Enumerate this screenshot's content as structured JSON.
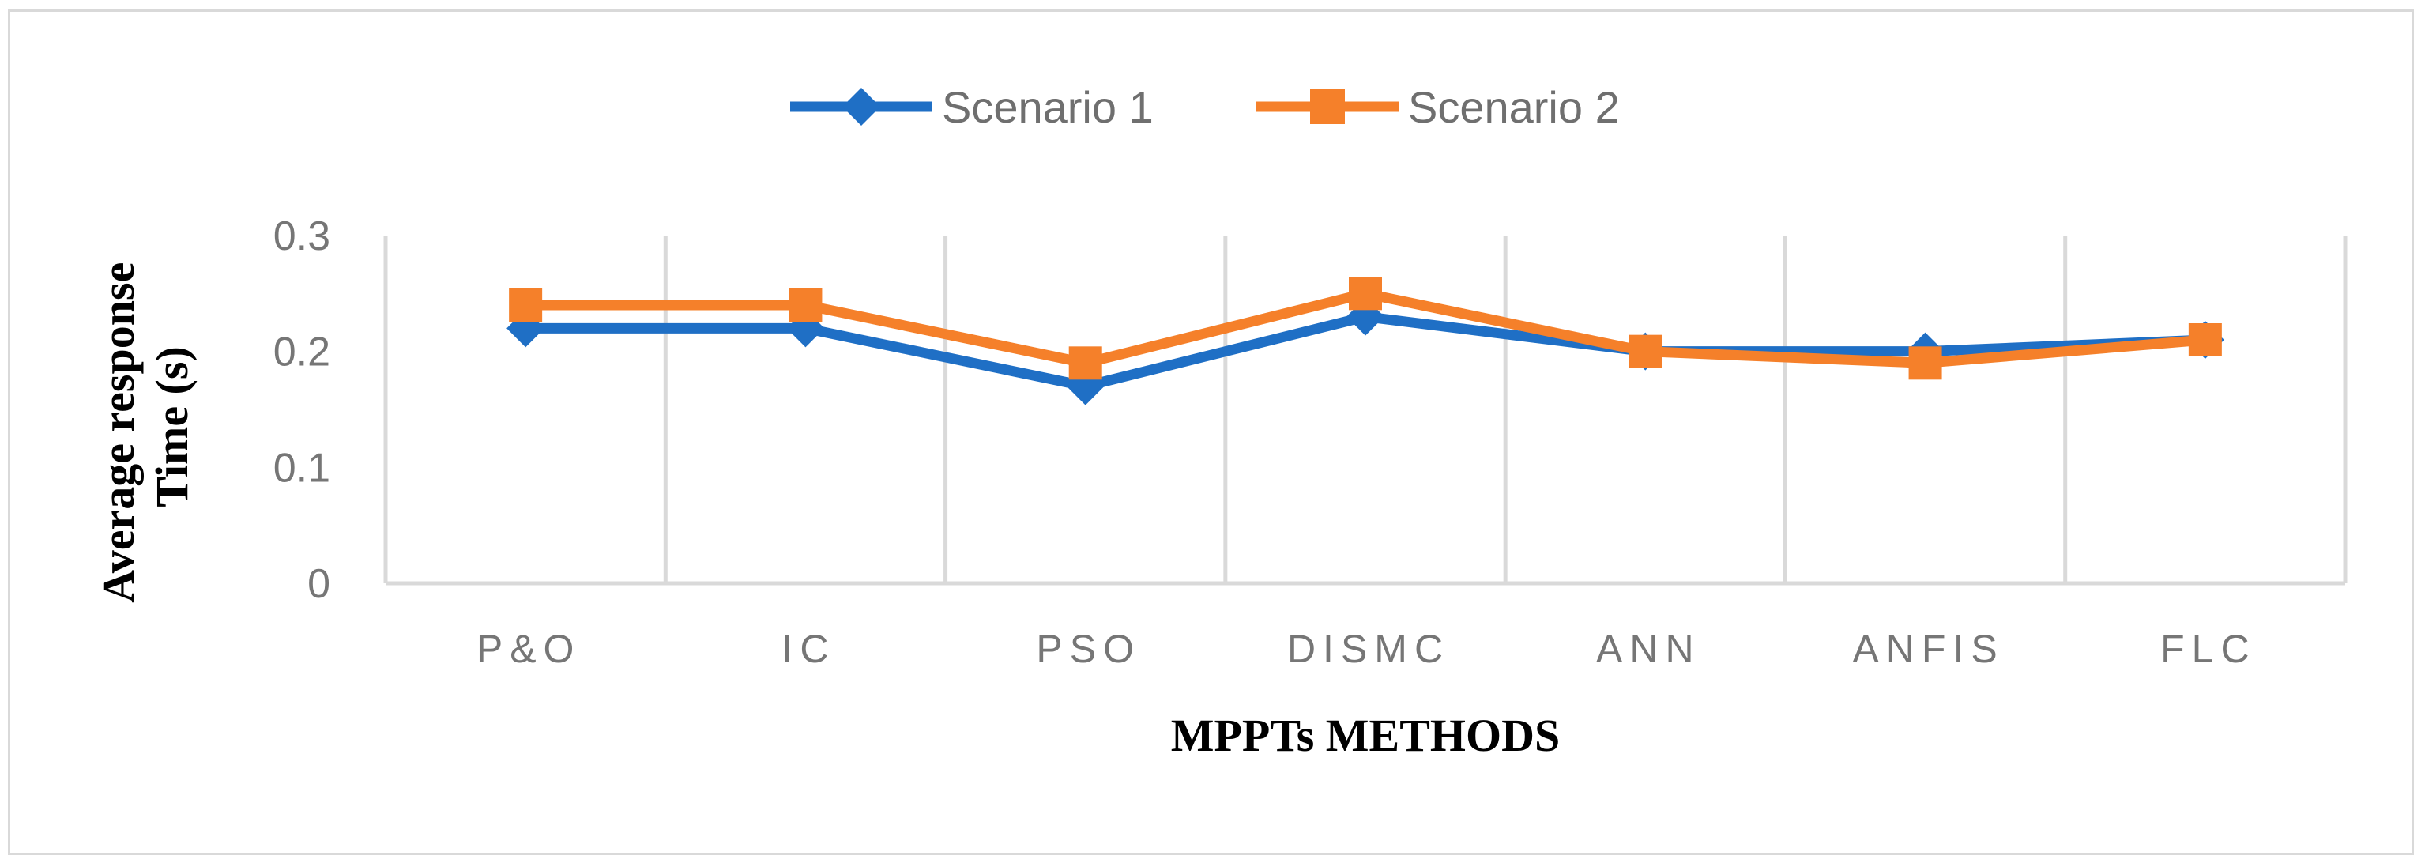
{
  "chart_data": {
    "type": "line",
    "categories": [
      "P&O",
      "IC",
      "PSO",
      "DISMC",
      "ANN",
      "ANFIS",
      "FLC"
    ],
    "series": [
      {
        "name": "Scenario 1",
        "values": [
          0.22,
          0.22,
          0.17,
          0.23,
          0.2,
          0.2,
          0.21
        ],
        "color": "#1f6fc5",
        "marker": "diamond"
      },
      {
        "name": "Scenario 2",
        "values": [
          0.24,
          0.24,
          0.19,
          0.25,
          0.2,
          0.19,
          0.21
        ],
        "color": "#f5802a",
        "marker": "square"
      }
    ],
    "xlabel": "MPPTs METHODS",
    "ylabel": [
      "Average response",
      "Time (s)"
    ],
    "ylim": [
      0,
      0.3
    ],
    "yticks": [
      "0",
      "0.1",
      "0.2",
      "0.3"
    ],
    "grid": "vertical",
    "legend_position": "top"
  }
}
